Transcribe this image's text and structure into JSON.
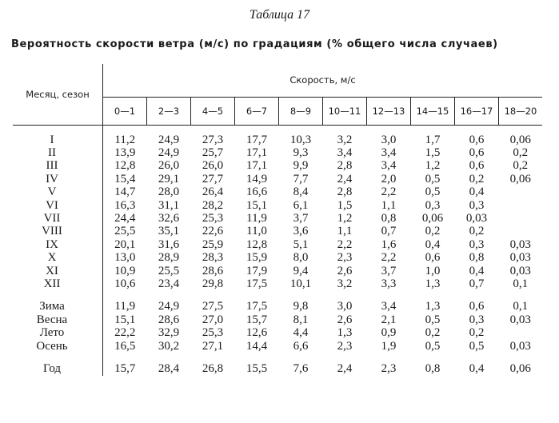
{
  "header": {
    "title": "Таблица 17",
    "caption": "Вероятность скорости ветра (м/с) по градациям (% общего числа случаев)"
  },
  "table": {
    "row_header": "Месяц, сезон",
    "group_header": "Скорость, м/с",
    "columns": [
      "0—1",
      "2—3",
      "4—5",
      "6—7",
      "8—9",
      "10—11",
      "12—13",
      "14—15",
      "16—17",
      "18—20"
    ],
    "months": [
      {
        "label": "I",
        "cells": [
          "11,2",
          "24,9",
          "27,3",
          "17,7",
          "10,3",
          "3,2",
          "3,0",
          "1,7",
          "0,6",
          "0,06"
        ]
      },
      {
        "label": "II",
        "cells": [
          "13,9",
          "24,9",
          "25,7",
          "17,1",
          "9,3",
          "3,4",
          "3,4",
          "1,5",
          "0,6",
          "0,2"
        ]
      },
      {
        "label": "III",
        "cells": [
          "12,8",
          "26,0",
          "26,0",
          "17,1",
          "9,9",
          "2,8",
          "3,4",
          "1,2",
          "0,6",
          "0,2"
        ]
      },
      {
        "label": "IV",
        "cells": [
          "15,4",
          "29,1",
          "27,7",
          "14,9",
          "7,7",
          "2,4",
          "2,0",
          "0,5",
          "0,2",
          "0,06"
        ]
      },
      {
        "label": "V",
        "cells": [
          "14,7",
          "28,0",
          "26,4",
          "16,6",
          "8,4",
          "2,8",
          "2,2",
          "0,5",
          "0,4",
          null
        ]
      },
      {
        "label": "VI",
        "cells": [
          "16,3",
          "31,1",
          "28,2",
          "15,1",
          "6,1",
          "1,5",
          "1,1",
          "0,3",
          "0,3",
          null
        ]
      },
      {
        "label": "VII",
        "cells": [
          "24,4",
          "32,6",
          "25,3",
          "11,9",
          "3,7",
          "1,2",
          "0,8",
          "0,06",
          "0,03",
          null
        ]
      },
      {
        "label": "VIII",
        "cells": [
          "25,5",
          "35,1",
          "22,6",
          "11,0",
          "3,6",
          "1,1",
          "0,7",
          "0,2",
          "0,2",
          null
        ]
      },
      {
        "label": "IX",
        "cells": [
          "20,1",
          "31,6",
          "25,9",
          "12,8",
          "5,1",
          "2,2",
          "1,6",
          "0,4",
          "0,3",
          "0,03"
        ]
      },
      {
        "label": "X",
        "cells": [
          "13,0",
          "28,9",
          "28,3",
          "15,9",
          "8,0",
          "2,3",
          "2,2",
          "0,6",
          "0,8",
          "0,03"
        ]
      },
      {
        "label": "XI",
        "cells": [
          "10,9",
          "25,5",
          "28,6",
          "17,9",
          "9,4",
          "2,6",
          "3,7",
          "1,0",
          "0,4",
          "0,03"
        ]
      },
      {
        "label": "XII",
        "cells": [
          "10,6",
          "23,4",
          "29,8",
          "17,5",
          "10,1",
          "3,2",
          "3,3",
          "1,3",
          "0,7",
          "0,1"
        ]
      }
    ],
    "seasons": [
      {
        "label": "Зима",
        "cells": [
          "11,9",
          "24,9",
          "27,5",
          "17,5",
          "9,8",
          "3,0",
          "3,4",
          "1,3",
          "0,6",
          "0,1"
        ]
      },
      {
        "label": "Весна",
        "cells": [
          "15,1",
          "28,6",
          "27,0",
          "15,7",
          "8,1",
          "2,6",
          "2,1",
          "0,5",
          "0,3",
          "0,03"
        ]
      },
      {
        "label": "Лето",
        "cells": [
          "22,2",
          "32,9",
          "25,3",
          "12,6",
          "4,4",
          "1,3",
          "0,9",
          "0,2",
          "0,2",
          null
        ]
      },
      {
        "label": "Осень",
        "cells": [
          "16,5",
          "30,2",
          "27,1",
          "14,4",
          "6,6",
          "2,3",
          "1,9",
          "0,5",
          "0,5",
          "0,03"
        ]
      }
    ],
    "year": {
      "label": "Год",
      "cells": [
        "15,7",
        "28,4",
        "26,8",
        "15,5",
        "7,6",
        "2,4",
        "2,3",
        "0,8",
        "0,4",
        "0,06"
      ]
    }
  }
}
